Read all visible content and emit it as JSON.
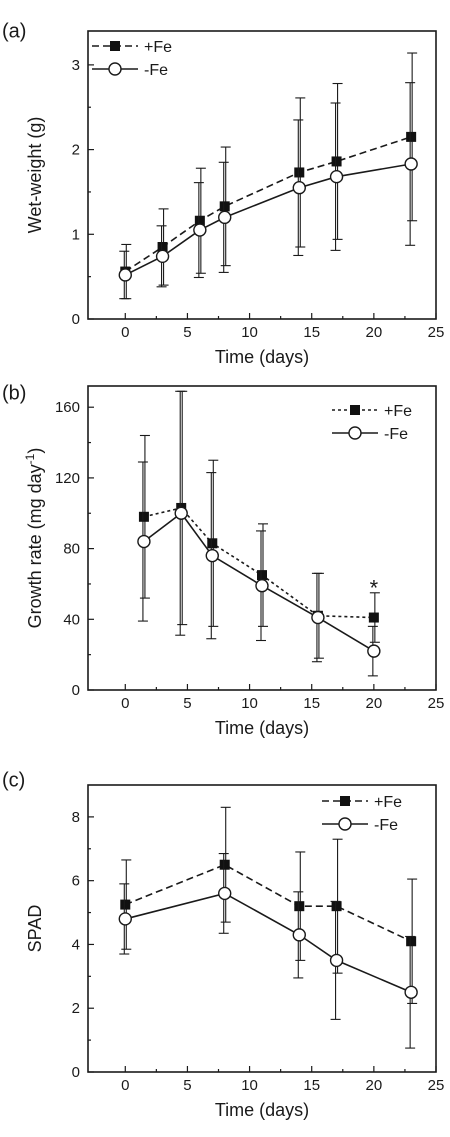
{
  "chart_data": [
    {
      "panel_label": "(a)",
      "type": "line",
      "xlabel": "Time (days)",
      "ylabel": "Wet-weight (g)",
      "xlim": [
        -3,
        25
      ],
      "ylim": [
        0,
        3.4
      ],
      "xticks": [
        0,
        5,
        10,
        15,
        20,
        25
      ],
      "yticks": [
        0,
        1,
        2,
        3
      ],
      "legend": "top-left",
      "series": [
        {
          "name": "+Fe",
          "marker": "filled-square",
          "line": "dashed",
          "x": [
            0,
            3,
            6,
            8,
            14,
            17,
            23
          ],
          "values": [
            0.56,
            0.85,
            1.16,
            1.33,
            1.73,
            1.86,
            2.15
          ],
          "error": [
            0.32,
            0.45,
            0.62,
            0.7,
            0.88,
            0.92,
            0.99
          ]
        },
        {
          "name": "-Fe",
          "marker": "open-circle",
          "line": "solid",
          "x": [
            0,
            3,
            6,
            8,
            14,
            17,
            23
          ],
          "values": [
            0.52,
            0.74,
            1.05,
            1.2,
            1.55,
            1.68,
            1.83
          ],
          "error": [
            0.28,
            0.36,
            0.56,
            0.65,
            0.8,
            0.87,
            0.96
          ]
        }
      ]
    },
    {
      "panel_label": "(b)",
      "type": "line",
      "xlabel": "Time (days)",
      "ylabel": "Growth rate (mg day",
      "ylabel_sup": "-1",
      "ylabel_end": ")",
      "xlim": [
        -3,
        25
      ],
      "ylim": [
        0,
        172
      ],
      "xticks": [
        0,
        5,
        10,
        15,
        20,
        25
      ],
      "yticks": [
        0,
        40,
        80,
        120,
        160
      ],
      "legend": "top-right",
      "annotation": {
        "text": "*",
        "x": 20,
        "y": 58
      },
      "series": [
        {
          "name": "+Fe",
          "marker": "filled-square",
          "line": "dotted",
          "x": [
            1.5,
            4.5,
            7,
            11,
            15.5,
            20
          ],
          "values": [
            98,
            103,
            83,
            65,
            42,
            41
          ],
          "error": [
            46,
            66,
            47,
            29,
            24,
            14
          ]
        },
        {
          "name": "-Fe",
          "marker": "open-circle",
          "line": "solid",
          "x": [
            1.5,
            4.5,
            7,
            11,
            15.5,
            20
          ],
          "values": [
            84,
            100,
            76,
            59,
            41,
            22
          ],
          "error": [
            45,
            69,
            47,
            31,
            25,
            14
          ]
        }
      ]
    },
    {
      "panel_label": "(c)",
      "type": "line",
      "xlabel": "Time (days)",
      "ylabel": "SPAD",
      "xlim": [
        -3,
        25
      ],
      "ylim": [
        0,
        9
      ],
      "xticks": [
        0,
        5,
        10,
        15,
        20,
        25
      ],
      "yticks": [
        0,
        2,
        4,
        6,
        8
      ],
      "legend": "top-right",
      "series": [
        {
          "name": "+Fe",
          "marker": "filled-square",
          "line": "dashed",
          "x": [
            0,
            8,
            14,
            17,
            23
          ],
          "values": [
            5.25,
            6.5,
            5.2,
            5.2,
            4.1
          ],
          "error": [
            1.4,
            1.8,
            1.7,
            2.1,
            1.95
          ]
        },
        {
          "name": "-Fe",
          "marker": "open-circle",
          "line": "solid",
          "x": [
            0,
            8,
            14,
            17,
            23
          ],
          "values": [
            4.8,
            5.6,
            4.3,
            3.5,
            2.5
          ],
          "error": [
            1.1,
            1.25,
            1.35,
            1.85,
            1.75
          ]
        }
      ]
    }
  ]
}
